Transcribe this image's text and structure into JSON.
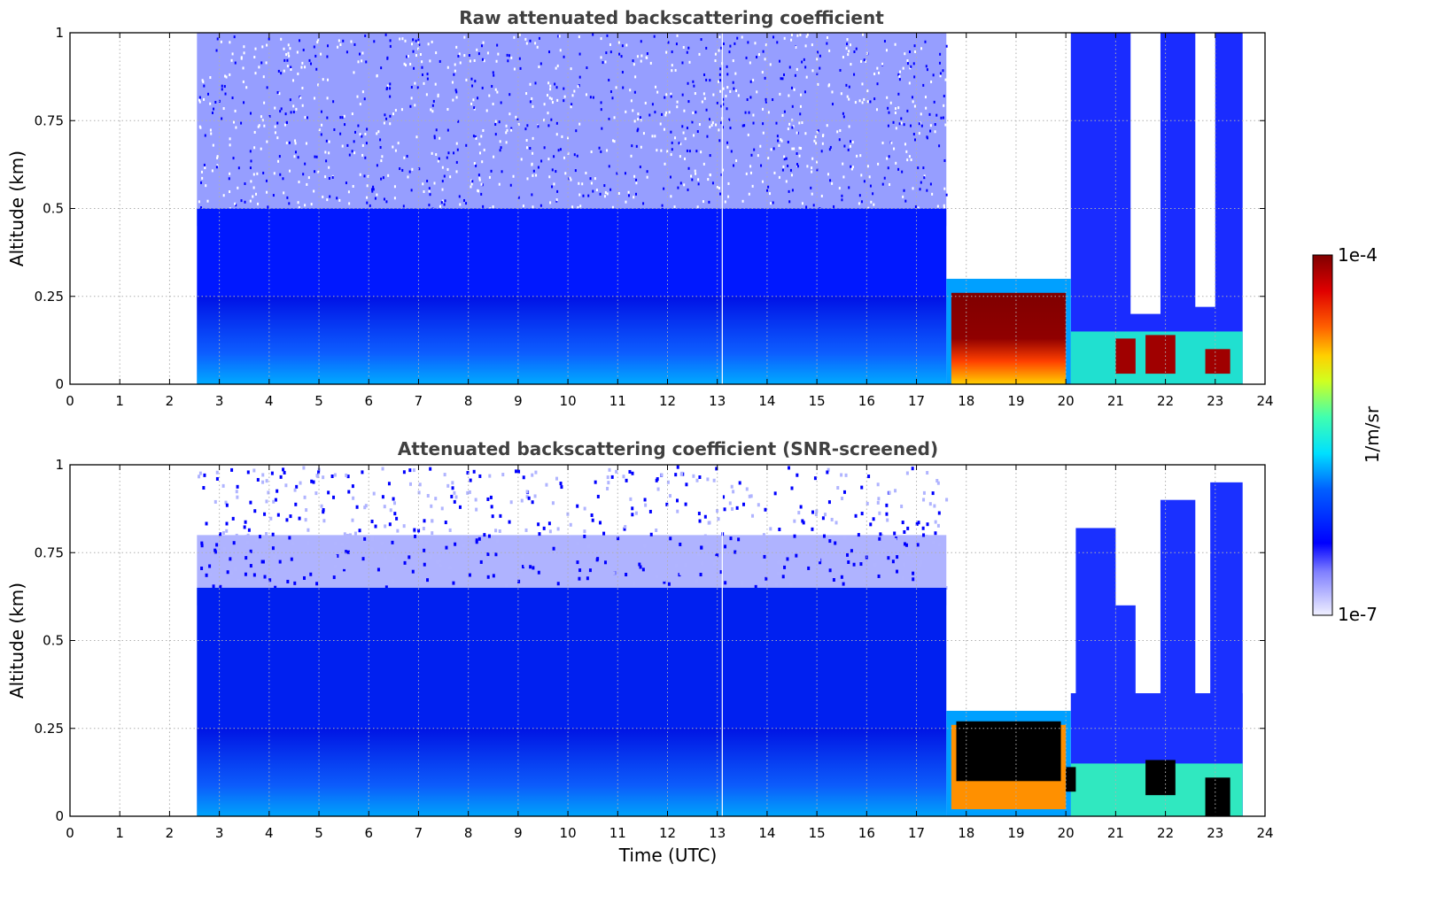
{
  "chart_data": [
    {
      "type": "heatmap",
      "title": "Raw attenuated backscattering coefficient",
      "ylabel": "Altitude (km)",
      "xlabel": "",
      "xlim": [
        0,
        24
      ],
      "ylim": [
        0,
        1
      ],
      "xticks": [
        "0",
        "1",
        "2",
        "3",
        "4",
        "5",
        "6",
        "7",
        "8",
        "9",
        "10",
        "11",
        "12",
        "13",
        "14",
        "15",
        "16",
        "17",
        "18",
        "19",
        "20",
        "21",
        "22",
        "23",
        "24"
      ],
      "yticks": [
        "0",
        "0.25",
        "0.5",
        "0.75",
        "1"
      ],
      "grid": true,
      "data_start_time": 2.55,
      "data_end_time": 23.55,
      "features": [
        {
          "name": "aerosol boundary layer",
          "time_range": [
            2.55,
            17.6
          ],
          "altitude_top": 0.25,
          "level": "medium"
        },
        {
          "name": "fog / low cloud",
          "time_range": [
            17.6,
            20.1
          ],
          "altitude_range": [
            0.0,
            0.3
          ],
          "level": "saturated"
        },
        {
          "name": "low cloud patches",
          "time_range": [
            21.0,
            23.3
          ],
          "altitude_range": [
            0.03,
            0.15
          ],
          "level": "saturated"
        },
        {
          "name": "no-signal gap",
          "time_range": [
            17.6,
            20.1
          ],
          "altitude_range": [
            0.32,
            1.0
          ]
        }
      ]
    },
    {
      "type": "heatmap",
      "title": "Attenuated backscattering coefficient (SNR-screened)",
      "ylabel": "Altitude (km)",
      "xlabel": "Time (UTC)",
      "xlim": [
        0,
        24
      ],
      "ylim": [
        0,
        1
      ],
      "xticks": [
        "0",
        "1",
        "2",
        "3",
        "4",
        "5",
        "6",
        "7",
        "8",
        "9",
        "10",
        "11",
        "12",
        "13",
        "14",
        "15",
        "16",
        "17",
        "18",
        "19",
        "20",
        "21",
        "22",
        "23",
        "24"
      ],
      "yticks": [
        "0",
        "0.25",
        "0.5",
        "0.75",
        "1"
      ],
      "grid": true,
      "data_start_time": 2.55,
      "data_end_time": 23.55,
      "features": [
        {
          "name": "screened noise above",
          "time_range": [
            2.55,
            17.6
          ],
          "altitude_range": [
            0.65,
            1.0
          ]
        },
        {
          "name": "fog / low cloud (masked black)",
          "time_range": [
            17.6,
            20.1
          ],
          "altitude_range": [
            0.0,
            0.3
          ],
          "level": "saturated"
        },
        {
          "name": "low cloud patches (masked black)",
          "time_range": [
            21.5,
            23.3
          ],
          "altitude_range": [
            0.0,
            0.18
          ],
          "level": "saturated"
        }
      ]
    }
  ],
  "colorbar": {
    "label": "1/m/sr",
    "max_label": "1e-4",
    "min_label": "1e-7",
    "colormap": [
      "#e6e6fa",
      "#0000ff",
      "#00ffff",
      "#ffff00",
      "#ff8000",
      "#ff0000",
      "#800000"
    ]
  }
}
